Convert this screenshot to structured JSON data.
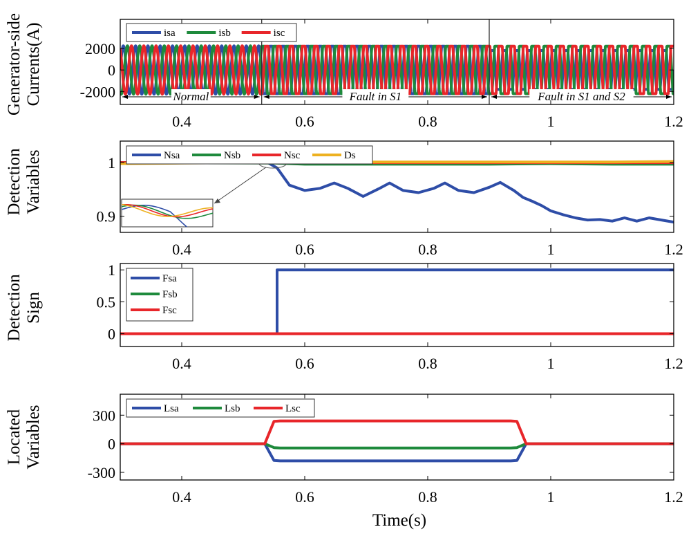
{
  "figure": {
    "xlabel": "Time(s)"
  },
  "chart_data": [
    {
      "type": "line",
      "id": "currents",
      "ylabel": [
        "Generator-side",
        "Currents(A)"
      ],
      "xlim": [
        0.3,
        1.2
      ],
      "ylim": [
        -3200,
        4700
      ],
      "xticks": [
        0.4,
        0.6,
        0.8,
        1.0,
        1.2
      ],
      "xtick_labels": [
        "0.4",
        "0.6",
        "0.8",
        "1",
        "1.2"
      ],
      "yticks": [
        2000,
        0,
        -2000
      ],
      "ytick_labels": [
        "2000",
        "0",
        "-2000"
      ],
      "signal": {
        "kind": "three_phase",
        "amplitude": 2250,
        "frequency_hz": 50
      },
      "series": [
        {
          "name": "isa",
          "color": "#2E4DA7"
        },
        {
          "name": "isb",
          "color": "#1E8A3C"
        },
        {
          "name": "isc",
          "color": "#E8262A"
        }
      ],
      "events": [
        0.53,
        0.9
      ],
      "annotations": [
        {
          "text": "Normal",
          "from": 0.3,
          "to": 0.53,
          "y": -3200
        },
        {
          "text": "Fault in S1",
          "from": 0.53,
          "to": 0.9,
          "y": -3200
        },
        {
          "text": "Fault in S1 and S2",
          "from": 0.9,
          "to": 1.2,
          "y": -3200
        }
      ]
    },
    {
      "type": "line",
      "id": "detection_variables",
      "ylabel": [
        "Detection",
        "Variables"
      ],
      "xlim": [
        0.3,
        1.2
      ],
      "ylim": [
        0.87,
        1.04
      ],
      "xticks": [
        0.4,
        0.6,
        0.8,
        1.0,
        1.2
      ],
      "xtick_labels": [
        "0.4",
        "0.6",
        "0.8",
        "1",
        "1.2"
      ],
      "yticks": [
        1.0,
        0.9
      ],
      "ytick_labels": [
        "1",
        "0.9"
      ],
      "series": [
        {
          "name": "Nsa",
          "color": "#2E4DA7",
          "x": [
            0.3,
            0.54,
            0.555,
            0.575,
            0.6,
            0.625,
            0.648,
            0.67,
            0.695,
            0.72,
            0.738,
            0.76,
            0.785,
            0.81,
            0.828,
            0.85,
            0.875,
            0.9,
            0.918,
            0.94,
            0.955,
            0.97,
            0.985,
            1.0,
            1.02,
            1.04,
            1.06,
            1.08,
            1.1,
            1.12,
            1.14,
            1.16,
            1.18,
            1.2
          ],
          "y": [
            1.0,
            1.0,
            0.99,
            0.958,
            0.948,
            0.952,
            0.962,
            0.952,
            0.937,
            0.951,
            0.962,
            0.948,
            0.944,
            0.952,
            0.962,
            0.948,
            0.944,
            0.954,
            0.963,
            0.948,
            0.935,
            0.928,
            0.92,
            0.91,
            0.903,
            0.897,
            0.893,
            0.894,
            0.891,
            0.897,
            0.891,
            0.897,
            0.893,
            0.889
          ]
        },
        {
          "name": "Nsb",
          "color": "#1E8A3C",
          "x": [
            0.3,
            0.55,
            0.6,
            0.7,
            0.8,
            0.9,
            1.0,
            1.1,
            1.2
          ],
          "y": [
            1.0,
            0.999,
            0.997,
            0.997,
            0.997,
            0.997,
            0.998,
            0.997,
            0.997
          ]
        },
        {
          "name": "Nsc",
          "color": "#E8262A",
          "x": [
            0.3,
            0.55,
            0.6,
            0.7,
            0.8,
            0.9,
            1.0,
            1.1,
            1.2
          ],
          "y": [
            1.0,
            1.0,
            1.0,
            1.0,
            1.0,
            1.0,
            1.0,
            1.0,
            1.0
          ]
        },
        {
          "name": "Ds",
          "color": "#EDB120",
          "x": [
            0.3,
            0.4,
            0.5,
            0.55,
            0.6,
            0.7,
            0.8,
            0.9,
            1.0,
            1.1,
            1.2
          ],
          "y": [
            0.998,
            0.999,
            1.0,
            1.0,
            1.0,
            1.001,
            1.001,
            1.001,
            1.001,
            1.001,
            1.002
          ]
        }
      ],
      "inset": {
        "zoom_center": [
          0.548,
          1.0
        ],
        "xrange": [
          0.515,
          0.58
        ],
        "yrange": [
          0.98,
          1.012
        ]
      }
    },
    {
      "type": "line",
      "id": "detection_sign",
      "ylabel": [
        "Detection",
        "Sign"
      ],
      "xlim": [
        0.3,
        1.2
      ],
      "ylim": [
        -0.2,
        1.1
      ],
      "xticks": [
        0.4,
        0.6,
        0.8,
        1.0,
        1.2
      ],
      "xtick_labels": [
        "0.4",
        "0.6",
        "0.8",
        "1",
        "1.2"
      ],
      "yticks": [
        1,
        0.5,
        0
      ],
      "ytick_labels": [
        "1",
        "0.5",
        "0"
      ],
      "series": [
        {
          "name": "Fsa",
          "color": "#2E4DA7",
          "x": [
            0.3,
            0.555,
            0.555,
            1.2
          ],
          "y": [
            0,
            0,
            1,
            1
          ]
        },
        {
          "name": "Fsb",
          "color": "#1E8A3C",
          "x": [
            0.3,
            1.2
          ],
          "y": [
            0,
            0
          ]
        },
        {
          "name": "Fsc",
          "color": "#E8262A",
          "x": [
            0.3,
            1.2
          ],
          "y": [
            0,
            0
          ]
        }
      ]
    },
    {
      "type": "line",
      "id": "located_variables",
      "ylabel": [
        "Located",
        "Variables"
      ],
      "xlim": [
        0.3,
        1.2
      ],
      "ylim": [
        -380,
        520
      ],
      "xticks": [
        0.4,
        0.6,
        0.8,
        1.0,
        1.2
      ],
      "xtick_labels": [
        "0.4",
        "0.6",
        "0.8",
        "1",
        "1.2"
      ],
      "yticks": [
        300,
        0,
        -300
      ],
      "ytick_labels": [
        "300",
        "0",
        "-300"
      ],
      "series": [
        {
          "name": "Lsa",
          "color": "#2E4DA7",
          "x": [
            0.3,
            0.535,
            0.55,
            0.56,
            0.935,
            0.945,
            0.96,
            1.2
          ],
          "y": [
            0,
            0,
            -175,
            -180,
            -180,
            -175,
            0,
            0
          ]
        },
        {
          "name": "Lsb",
          "color": "#1E8A3C",
          "x": [
            0.3,
            0.535,
            0.55,
            0.56,
            0.935,
            0.945,
            0.96,
            1.2
          ],
          "y": [
            0,
            0,
            -40,
            -45,
            -45,
            -40,
            0,
            0
          ]
        },
        {
          "name": "Lsc",
          "color": "#E8262A",
          "x": [
            0.3,
            0.535,
            0.55,
            0.56,
            0.935,
            0.945,
            0.96,
            1.2
          ],
          "y": [
            0,
            0,
            235,
            240,
            240,
            235,
            0,
            0
          ]
        }
      ]
    }
  ]
}
